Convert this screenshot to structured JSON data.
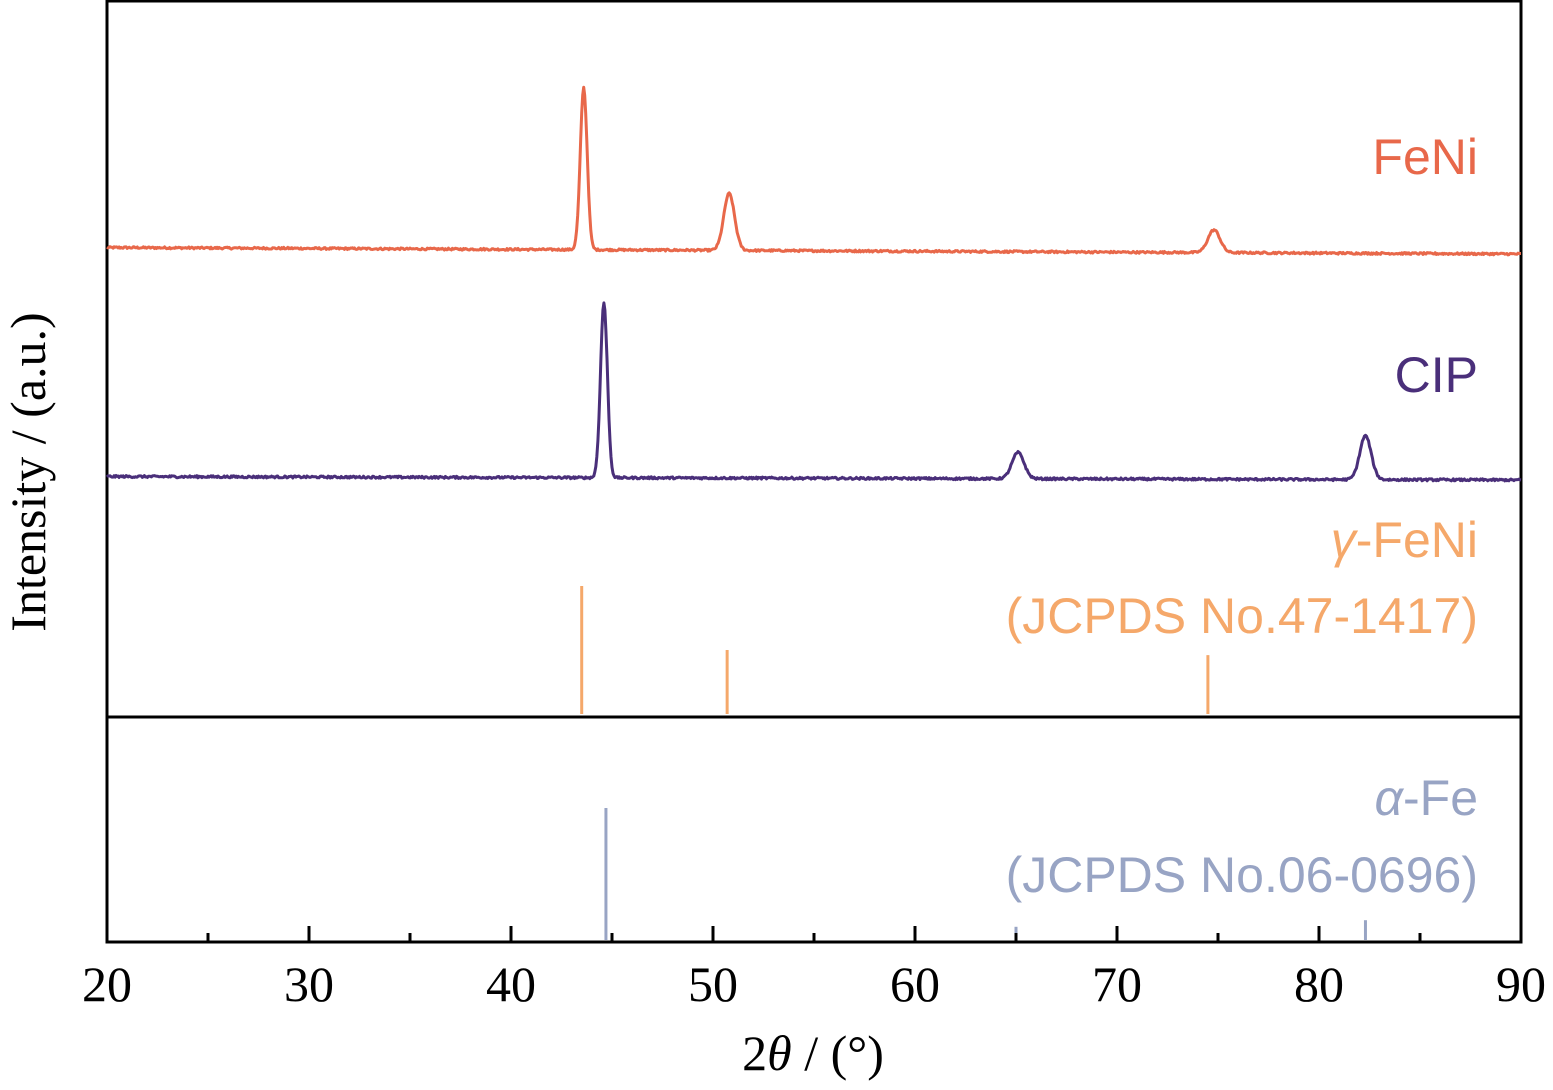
{
  "chart_data": {
    "type": "line",
    "xlabel": {
      "pre": "2",
      "sym": "θ",
      "post": " / (°)"
    },
    "ylabel": "Intensity / (a.u.)",
    "xlim": [
      20,
      90
    ],
    "x_ticks": [
      20,
      30,
      40,
      50,
      60,
      70,
      80,
      90
    ],
    "x_minor_ticks": [
      25,
      35,
      45,
      55,
      65,
      75,
      85
    ],
    "grid": false,
    "series": [
      {
        "name": "FeNi",
        "color": "#e8684a",
        "style": "pattern",
        "baseline": 0.04,
        "peaks": [
          {
            "x": 43.6,
            "height": 1.0
          },
          {
            "x": 50.8,
            "height": 0.35
          },
          {
            "x": 74.8,
            "height": 0.14
          }
        ]
      },
      {
        "name": "CIP",
        "color": "#4a2f7a",
        "style": "pattern",
        "baseline": 0.02,
        "peaks": [
          {
            "x": 44.6,
            "height": 1.0
          },
          {
            "x": 65.1,
            "height": 0.15
          },
          {
            "x": 82.3,
            "height": 0.25
          }
        ]
      }
    ],
    "references": [
      {
        "name_sym": "γ",
        "name_post": "-FeNi",
        "card": "(JCPDS No.47-1417)",
        "color": "#f5a86a",
        "lines": [
          {
            "x": 43.5,
            "intensity": 1.0
          },
          {
            "x": 50.7,
            "intensity": 0.5
          },
          {
            "x": 74.5,
            "intensity": 0.46
          }
        ]
      },
      {
        "name_sym": "α",
        "name_post": "-Fe",
        "card": "(JCPDS No.06-0696)",
        "color": "#98a4c4",
        "lines": [
          {
            "x": 44.7,
            "intensity": 1.0
          },
          {
            "x": 65.0,
            "intensity": 0.1
          },
          {
            "x": 82.3,
            "intensity": 0.15
          }
        ]
      }
    ]
  }
}
